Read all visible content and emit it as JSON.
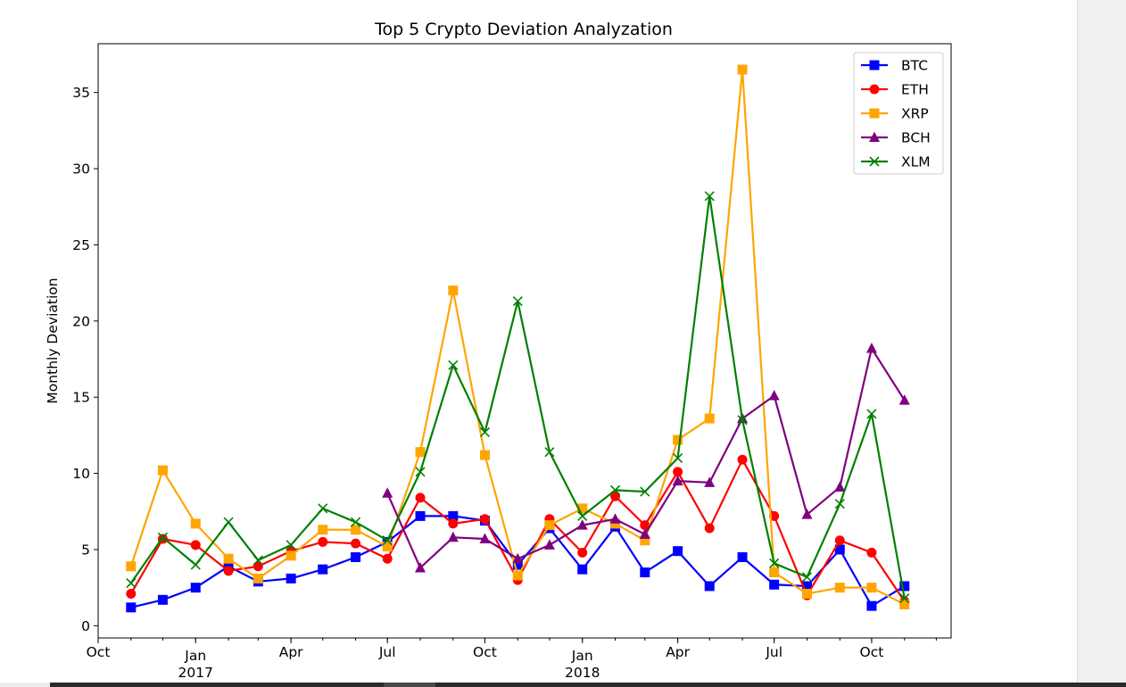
{
  "chart_data": {
    "type": "line",
    "title": "Top 5 Crypto Deviation Analyzation",
    "xlabel": "",
    "ylabel": "Monthly Deviation",
    "ylim": [
      -0.8,
      38.2
    ],
    "yticks": [
      0,
      5,
      10,
      15,
      20,
      25,
      30,
      35
    ],
    "xlim": [
      "2016-10-01",
      "2018-12-15"
    ],
    "xticks": [
      {
        "date": "2016-10-01",
        "label": "Oct",
        "sublabel": ""
      },
      {
        "date": "2017-01-01",
        "label": "Jan",
        "sublabel": "2017"
      },
      {
        "date": "2017-04-01",
        "label": "Apr",
        "sublabel": ""
      },
      {
        "date": "2017-07-01",
        "label": "Jul",
        "sublabel": ""
      },
      {
        "date": "2017-10-01",
        "label": "Oct",
        "sublabel": ""
      },
      {
        "date": "2018-01-01",
        "label": "Jan",
        "sublabel": "2018"
      },
      {
        "date": "2018-04-01",
        "label": "Apr",
        "sublabel": ""
      },
      {
        "date": "2018-07-01",
        "label": "Jul",
        "sublabel": ""
      },
      {
        "date": "2018-10-01",
        "label": "Oct",
        "sublabel": ""
      }
    ],
    "grid": false,
    "legend_position": "top-right",
    "x": [
      "2016-11-01",
      "2016-12-01",
      "2017-01-01",
      "2017-02-01",
      "2017-03-01",
      "2017-04-01",
      "2017-05-01",
      "2017-06-01",
      "2017-07-01",
      "2017-08-01",
      "2017-09-01",
      "2017-10-01",
      "2017-11-01",
      "2017-12-01",
      "2018-01-01",
      "2018-02-01",
      "2018-03-01",
      "2018-04-01",
      "2018-05-01",
      "2018-06-01",
      "2018-07-01",
      "2018-08-01",
      "2018-09-01",
      "2018-10-01",
      "2018-11-01"
    ],
    "series": [
      {
        "name": "BTC",
        "color": "#0000ff",
        "marker": "square",
        "values": [
          1.2,
          1.7,
          2.5,
          3.9,
          2.9,
          3.1,
          3.7,
          4.5,
          5.5,
          7.2,
          7.2,
          6.9,
          4.0,
          6.4,
          3.7,
          6.5,
          3.5,
          4.9,
          2.6,
          4.5,
          2.7,
          2.6,
          5.0,
          1.3,
          2.6
        ]
      },
      {
        "name": "ETH",
        "color": "#ff0000",
        "marker": "circle",
        "values": [
          2.1,
          5.7,
          5.3,
          3.6,
          3.9,
          4.9,
          5.5,
          5.4,
          4.4,
          8.4,
          6.7,
          7.0,
          3.0,
          7.0,
          4.8,
          8.5,
          6.6,
          10.1,
          6.4,
          10.9,
          7.2,
          2.0,
          5.6,
          4.8,
          1.6
        ]
      },
      {
        "name": "XRP",
        "color": "#ffa500",
        "marker": "square",
        "values": [
          3.9,
          10.2,
          6.7,
          4.4,
          3.1,
          4.6,
          6.3,
          6.3,
          5.2,
          11.4,
          22.0,
          11.2,
          3.3,
          6.6,
          7.7,
          6.7,
          5.6,
          12.2,
          13.6,
          36.5,
          3.5,
          2.1,
          2.5,
          2.5,
          1.4
        ]
      },
      {
        "name": "BCH",
        "color": "#800080",
        "marker": "triangle",
        "x": [
          "2017-07-01",
          "2017-08-01",
          "2017-09-01",
          "2017-10-01",
          "2017-11-01",
          "2017-12-01",
          "2018-01-01",
          "2018-02-01",
          "2018-03-01",
          "2018-04-01",
          "2018-05-01",
          "2018-06-01",
          "2018-07-01",
          "2018-08-01",
          "2018-09-01",
          "2018-10-01",
          "2018-11-01"
        ],
        "values": [
          8.7,
          3.8,
          5.8,
          5.7,
          4.4,
          5.3,
          6.6,
          7.0,
          6.0,
          9.5,
          9.4,
          13.6,
          15.1,
          7.3,
          9.1,
          18.2,
          14.8
        ]
      },
      {
        "name": "XLM",
        "color": "#008000",
        "marker": "x",
        "values": [
          2.8,
          5.8,
          4.0,
          6.8,
          4.3,
          5.3,
          7.7,
          6.8,
          5.6,
          10.1,
          17.1,
          12.7,
          21.3,
          11.4,
          7.2,
          8.9,
          8.8,
          11.0,
          28.2,
          13.5,
          4.1,
          3.2,
          8.0,
          13.9,
          1.8
        ]
      }
    ]
  }
}
